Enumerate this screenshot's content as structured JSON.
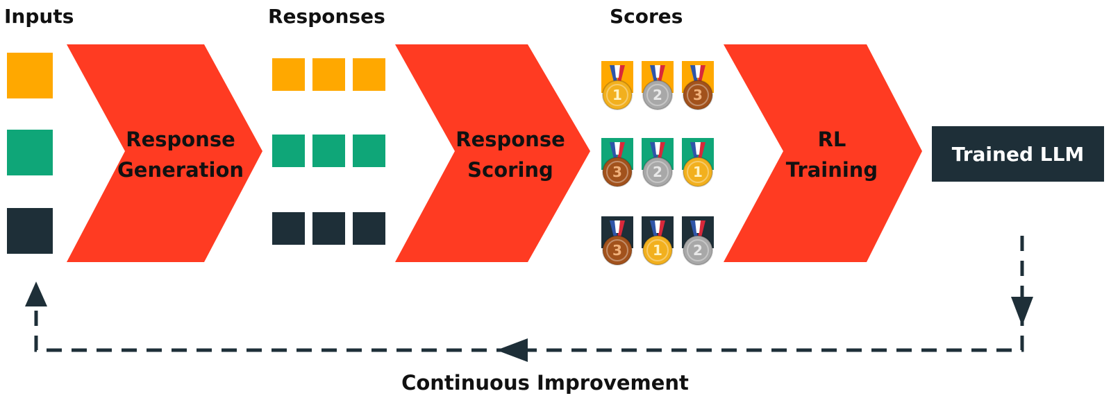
{
  "headers": {
    "inputs": "Inputs",
    "responses": "Responses",
    "scores": "Scores"
  },
  "stages": [
    {
      "lines": [
        "Response",
        "Generation"
      ]
    },
    {
      "lines": [
        "Response",
        "Scoring"
      ]
    },
    {
      "lines": [
        "RL",
        "Training"
      ]
    }
  ],
  "output_box": {
    "label": "Trained LLM"
  },
  "loop_label": "Continuous Improvement",
  "rows": [
    {
      "color": "#FFA800",
      "ranks": [
        1,
        2,
        3
      ]
    },
    {
      "color": "#0FA678",
      "ranks": [
        3,
        2,
        1
      ]
    },
    {
      "color": "#1E2F38",
      "ranks": [
        3,
        1,
        2
      ]
    }
  ],
  "colors": {
    "arrow": "#FF3B22",
    "dark": "#1E2F38",
    "gold": "#F2B01E",
    "silver": "#A8A8A8",
    "bronze": "#A2521C"
  },
  "icons": {
    "stage_shape": "chevron-arrow",
    "score_marker": "medal-icon",
    "loop": "dashed-return-arrow"
  }
}
